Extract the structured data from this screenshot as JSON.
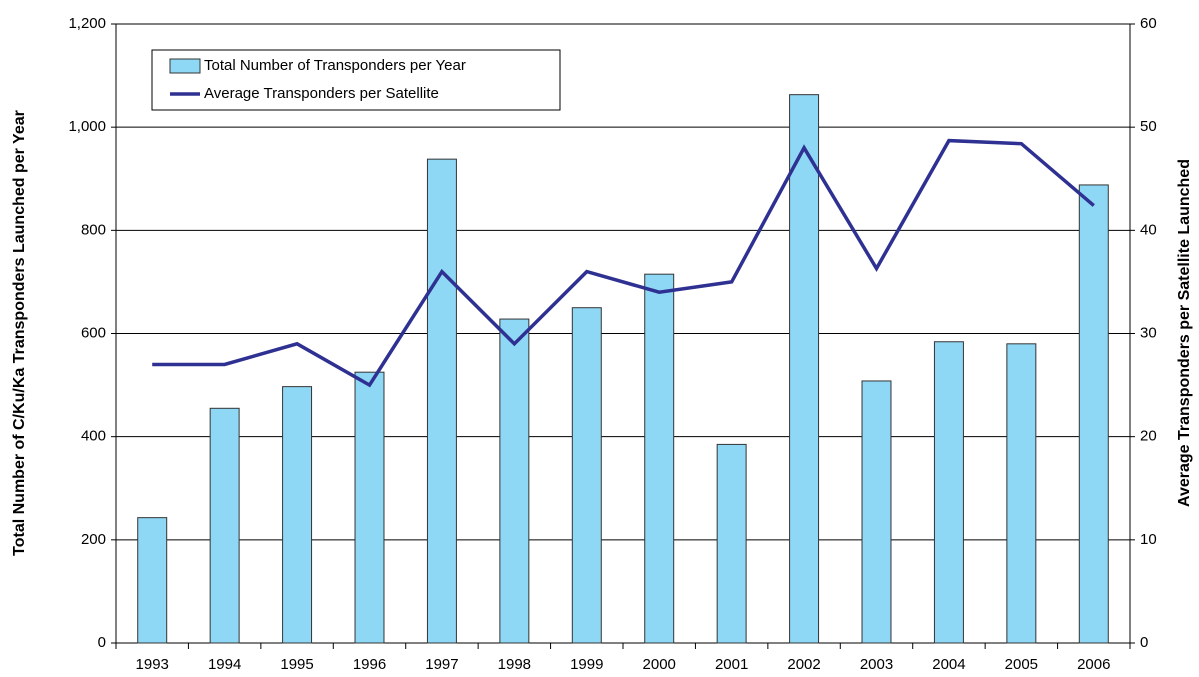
{
  "chart_data": {
    "type": "bar_line",
    "categories": [
      "1993",
      "1994",
      "1995",
      "1996",
      "1997",
      "1998",
      "1999",
      "2000",
      "2001",
      "2002",
      "2003",
      "2004",
      "2005",
      "2006"
    ],
    "series": [
      {
        "name": "Total Number of Transponders per Year",
        "type": "bar",
        "color": "#8fd8f5",
        "values": [
          243,
          455,
          497,
          525,
          938,
          628,
          650,
          715,
          385,
          1063,
          508,
          584,
          580,
          888
        ]
      },
      {
        "name": "Average Transponders per Satellite",
        "type": "line",
        "axis": "y2",
        "color": "#2e3192",
        "values": [
          27,
          27,
          29,
          25,
          36,
          29,
          36,
          34,
          35,
          48,
          36.3,
          48.7,
          48.4,
          42.4
        ]
      }
    ],
    "y_label": "Total Number of C/Ku/Ka Transponders Launched per Year",
    "y2_label": "Average Transponders per Satellite Launched",
    "ylim": [
      0,
      1200
    ],
    "yticks": [
      0,
      200,
      400,
      600,
      800,
      {
        "value": 1000,
        "label": "1,000"
      },
      {
        "value": 1200,
        "label": "1,200"
      }
    ],
    "y2lim": [
      0,
      60
    ],
    "y2ticks": [
      0,
      10,
      20,
      30,
      40,
      50,
      60
    ],
    "grid": true,
    "legend": "top-left"
  }
}
